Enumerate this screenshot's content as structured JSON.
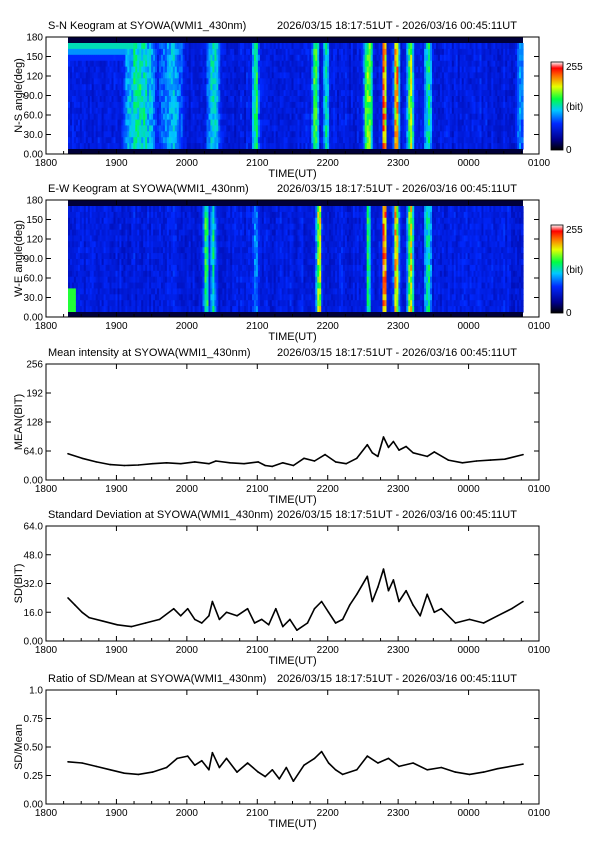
{
  "time_axis": {
    "xlabel": "TIME(UT)",
    "ticks": [
      "1800",
      "1900",
      "2000",
      "2100",
      "2200",
      "2300",
      "0000",
      "0100"
    ],
    "tick_hours": [
      0,
      1,
      2,
      3,
      4,
      5,
      6,
      7
    ],
    "data_start_hour": 0.3,
    "data_end_hour": 6.76
  },
  "time_range": "2026/03/15 18:17:51UT - 2026/03/16 00:45:11UT",
  "colorbar": {
    "max_label": "255",
    "unit_label": "(bit)",
    "min_label": "0"
  },
  "chart_data": [
    {
      "type": "heatmap",
      "title": "S-N Keogram at SYOWA(WMI1_430nm)",
      "ylabel": "N-S angle(deg)",
      "yticks": [
        "0.00",
        "30.0",
        "60.0",
        "90.0",
        "120",
        "150",
        "180"
      ],
      "ylim": [
        0,
        180
      ],
      "colorbar_range": [
        0,
        255
      ],
      "bright_bands": [
        {
          "t": 1.3,
          "width": 0.28,
          "intensity": 0.55
        },
        {
          "t": 1.75,
          "width": 0.22,
          "intensity": 0.45
        },
        {
          "t": 2.35,
          "width": 0.12,
          "intensity": 0.5
        },
        {
          "t": 2.95,
          "width": 0.06,
          "intensity": 0.6
        },
        {
          "t": 3.8,
          "width": 0.06,
          "intensity": 0.65
        },
        {
          "t": 3.95,
          "width": 0.05,
          "intensity": 0.55
        },
        {
          "t": 4.55,
          "width": 0.08,
          "intensity": 0.7
        },
        {
          "t": 4.78,
          "width": 0.04,
          "intensity": 0.95
        },
        {
          "t": 4.95,
          "width": 0.05,
          "intensity": 0.85
        },
        {
          "t": 5.15,
          "width": 0.06,
          "intensity": 0.7
        },
        {
          "t": 5.4,
          "width": 0.07,
          "intensity": 0.55
        },
        {
          "t": 6.7,
          "width": 0.06,
          "intensity": 0.45
        }
      ]
    },
    {
      "type": "heatmap",
      "title": "E-W Keogram at SYOWA(WMI1_430nm)",
      "ylabel": "W-E angle(deg)",
      "yticks": [
        "0.00",
        "30.0",
        "60.0",
        "90.0",
        "120",
        "150",
        "180"
      ],
      "ylim": [
        0,
        180
      ],
      "colorbar_range": [
        0,
        255
      ],
      "bright_bands": [
        {
          "t": 2.25,
          "width": 0.05,
          "intensity": 0.6
        },
        {
          "t": 2.35,
          "width": 0.04,
          "intensity": 0.55
        },
        {
          "t": 2.95,
          "width": 0.05,
          "intensity": 0.45
        },
        {
          "t": 3.85,
          "width": 0.05,
          "intensity": 0.75
        },
        {
          "t": 4.55,
          "width": 0.04,
          "intensity": 0.6
        },
        {
          "t": 4.78,
          "width": 0.04,
          "intensity": 0.95
        },
        {
          "t": 4.95,
          "width": 0.05,
          "intensity": 0.85
        },
        {
          "t": 5.15,
          "width": 0.06,
          "intensity": 0.75
        },
        {
          "t": 5.4,
          "width": 0.07,
          "intensity": 0.55
        }
      ]
    },
    {
      "type": "line",
      "title": "Mean intensity at SYOWA(WMI1_430nm)",
      "ylabel": "MEAN(BIT)",
      "yticks": [
        "0.00",
        "64.0",
        "128",
        "192",
        "256"
      ],
      "ylim": [
        0,
        256
      ],
      "x": [
        0.3,
        0.5,
        0.7,
        0.9,
        1.1,
        1.3,
        1.5,
        1.7,
        1.9,
        2.1,
        2.3,
        2.4,
        2.6,
        2.8,
        3.0,
        3.1,
        3.2,
        3.35,
        3.5,
        3.65,
        3.8,
        3.95,
        4.1,
        4.25,
        4.4,
        4.55,
        4.62,
        4.7,
        4.78,
        4.85,
        4.92,
        5.0,
        5.1,
        5.2,
        5.3,
        5.4,
        5.5,
        5.7,
        5.9,
        6.1,
        6.3,
        6.5,
        6.76
      ],
      "y": [
        58,
        48,
        40,
        34,
        32,
        33,
        36,
        38,
        36,
        40,
        36,
        42,
        38,
        36,
        40,
        32,
        30,
        38,
        32,
        48,
        42,
        56,
        40,
        36,
        48,
        78,
        60,
        52,
        95,
        72,
        85,
        66,
        74,
        60,
        56,
        52,
        62,
        44,
        38,
        42,
        44,
        46,
        56
      ]
    },
    {
      "type": "line",
      "title": "Standard Deviation at SYOWA(WMI1_430nm)",
      "ylabel": "SD(BIT)",
      "yticks": [
        "0.00",
        "16.0",
        "32.0",
        "48.0",
        "64.0"
      ],
      "ylim": [
        0,
        64
      ],
      "x": [
        0.3,
        0.4,
        0.5,
        0.6,
        0.8,
        1.0,
        1.2,
        1.4,
        1.6,
        1.8,
        1.9,
        2.0,
        2.1,
        2.2,
        2.3,
        2.35,
        2.45,
        2.55,
        2.7,
        2.85,
        2.95,
        3.05,
        3.15,
        3.25,
        3.35,
        3.45,
        3.55,
        3.7,
        3.8,
        3.9,
        4.0,
        4.1,
        4.2,
        4.3,
        4.4,
        4.55,
        4.62,
        4.7,
        4.78,
        4.85,
        4.92,
        5.0,
        5.1,
        5.2,
        5.3,
        5.4,
        5.5,
        5.6,
        5.8,
        6.0,
        6.2,
        6.4,
        6.6,
        6.76
      ],
      "y": [
        24,
        20,
        16,
        13,
        11,
        9,
        8,
        10,
        12,
        18,
        14,
        18,
        12,
        10,
        14,
        22,
        12,
        16,
        14,
        18,
        10,
        12,
        9,
        18,
        8,
        12,
        6,
        10,
        18,
        22,
        16,
        10,
        12,
        20,
        26,
        36,
        22,
        30,
        40,
        28,
        34,
        22,
        28,
        20,
        14,
        26,
        16,
        18,
        10,
        12,
        10,
        14,
        18,
        22
      ]
    },
    {
      "type": "line",
      "title": "Ratio of SD/Mean at SYOWA(WMI1_430nm)",
      "ylabel": "SD/Mean",
      "yticks": [
        "0.00",
        "0.25",
        "0.50",
        "0.75",
        "1.0"
      ],
      "ylim": [
        0,
        1
      ],
      "x": [
        0.3,
        0.5,
        0.7,
        0.9,
        1.1,
        1.3,
        1.5,
        1.7,
        1.85,
        2.0,
        2.1,
        2.2,
        2.3,
        2.35,
        2.45,
        2.55,
        2.7,
        2.85,
        3.0,
        3.1,
        3.2,
        3.3,
        3.4,
        3.5,
        3.65,
        3.8,
        3.9,
        4.0,
        4.1,
        4.2,
        4.4,
        4.55,
        4.7,
        4.85,
        5.0,
        5.2,
        5.4,
        5.6,
        5.8,
        6.0,
        6.2,
        6.4,
        6.76
      ],
      "y": [
        0.37,
        0.36,
        0.33,
        0.3,
        0.27,
        0.26,
        0.28,
        0.32,
        0.4,
        0.42,
        0.34,
        0.38,
        0.3,
        0.45,
        0.32,
        0.4,
        0.28,
        0.36,
        0.28,
        0.24,
        0.3,
        0.22,
        0.32,
        0.2,
        0.34,
        0.4,
        0.46,
        0.36,
        0.3,
        0.26,
        0.3,
        0.42,
        0.36,
        0.4,
        0.33,
        0.36,
        0.3,
        0.32,
        0.28,
        0.26,
        0.28,
        0.31,
        0.35
      ]
    }
  ]
}
